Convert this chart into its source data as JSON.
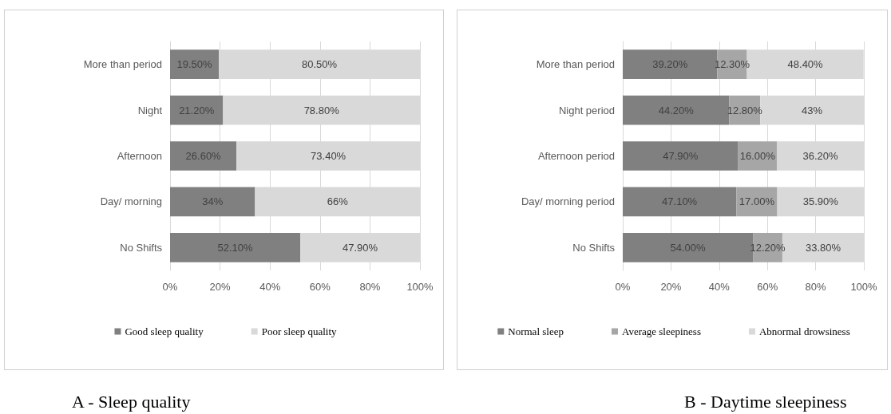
{
  "chart_data": [
    {
      "type": "bar",
      "orientation": "horizontal",
      "stacked": true,
      "title": "A - Sleep quality",
      "categories": [
        "More than period",
        "Night",
        "Afternoon",
        "Day/ morning",
        "No Shifts"
      ],
      "series": [
        {
          "name": "Good sleep quality",
          "color": "#808080",
          "values": [
            19.5,
            21.2,
            26.6,
            34,
            52.1
          ],
          "value_labels": [
            "19.50%",
            "21.20%",
            "26.60%",
            "34%",
            "52.10%"
          ]
        },
        {
          "name": "Poor sleep quality",
          "color": "#d9d9d9",
          "values": [
            80.5,
            78.8,
            73.4,
            66,
            47.9
          ],
          "value_labels": [
            "80.50%",
            "78.80%",
            "73.40%",
            "66%",
            "47.90%"
          ]
        }
      ],
      "xlim": [
        0,
        100
      ],
      "xticks": [
        {
          "value": 0,
          "label": "0%"
        },
        {
          "value": 20,
          "label": "20%"
        },
        {
          "value": 40,
          "label": "40%"
        },
        {
          "value": 60,
          "label": "60%"
        },
        {
          "value": 80,
          "label": "80%"
        },
        {
          "value": 100,
          "label": "100%"
        }
      ],
      "grid": "x",
      "legend": "bottom"
    },
    {
      "type": "bar",
      "orientation": "horizontal",
      "stacked": true,
      "title": "B - Daytime sleepiness",
      "categories": [
        "More than period",
        "Night period",
        "Afternoon period",
        "Day/ morning period",
        "No Shifts"
      ],
      "series": [
        {
          "name": "Normal sleep",
          "color": "#808080",
          "values": [
            39.2,
            44.2,
            47.9,
            47.1,
            54.0
          ],
          "value_labels": [
            "39.20%",
            "44.20%",
            "47.90%",
            "47.10%",
            "54.00%"
          ]
        },
        {
          "name": "Average sleepiness",
          "color": "#a6a6a6",
          "values": [
            12.3,
            12.8,
            16.0,
            17.0,
            12.2
          ],
          "value_labels": [
            "12.30%",
            "12.80%",
            "16.00%",
            "17.00%",
            "12.20%"
          ]
        },
        {
          "name": "Abnormal drowsiness",
          "color": "#d9d9d9",
          "values": [
            48.4,
            43,
            36.2,
            35.9,
            33.8
          ],
          "value_labels": [
            "48.40%",
            "43%",
            "36.20%",
            "35.90%",
            "33.80%"
          ]
        }
      ],
      "xlim": [
        0,
        100
      ],
      "xticks": [
        {
          "value": 0,
          "label": "0%"
        },
        {
          "value": 20,
          "label": "20%"
        },
        {
          "value": 40,
          "label": "40%"
        },
        {
          "value": 60,
          "label": "60%"
        },
        {
          "value": 80,
          "label": "80%"
        },
        {
          "value": 100,
          "label": "100%"
        }
      ],
      "grid": "x",
      "legend": "bottom"
    }
  ]
}
